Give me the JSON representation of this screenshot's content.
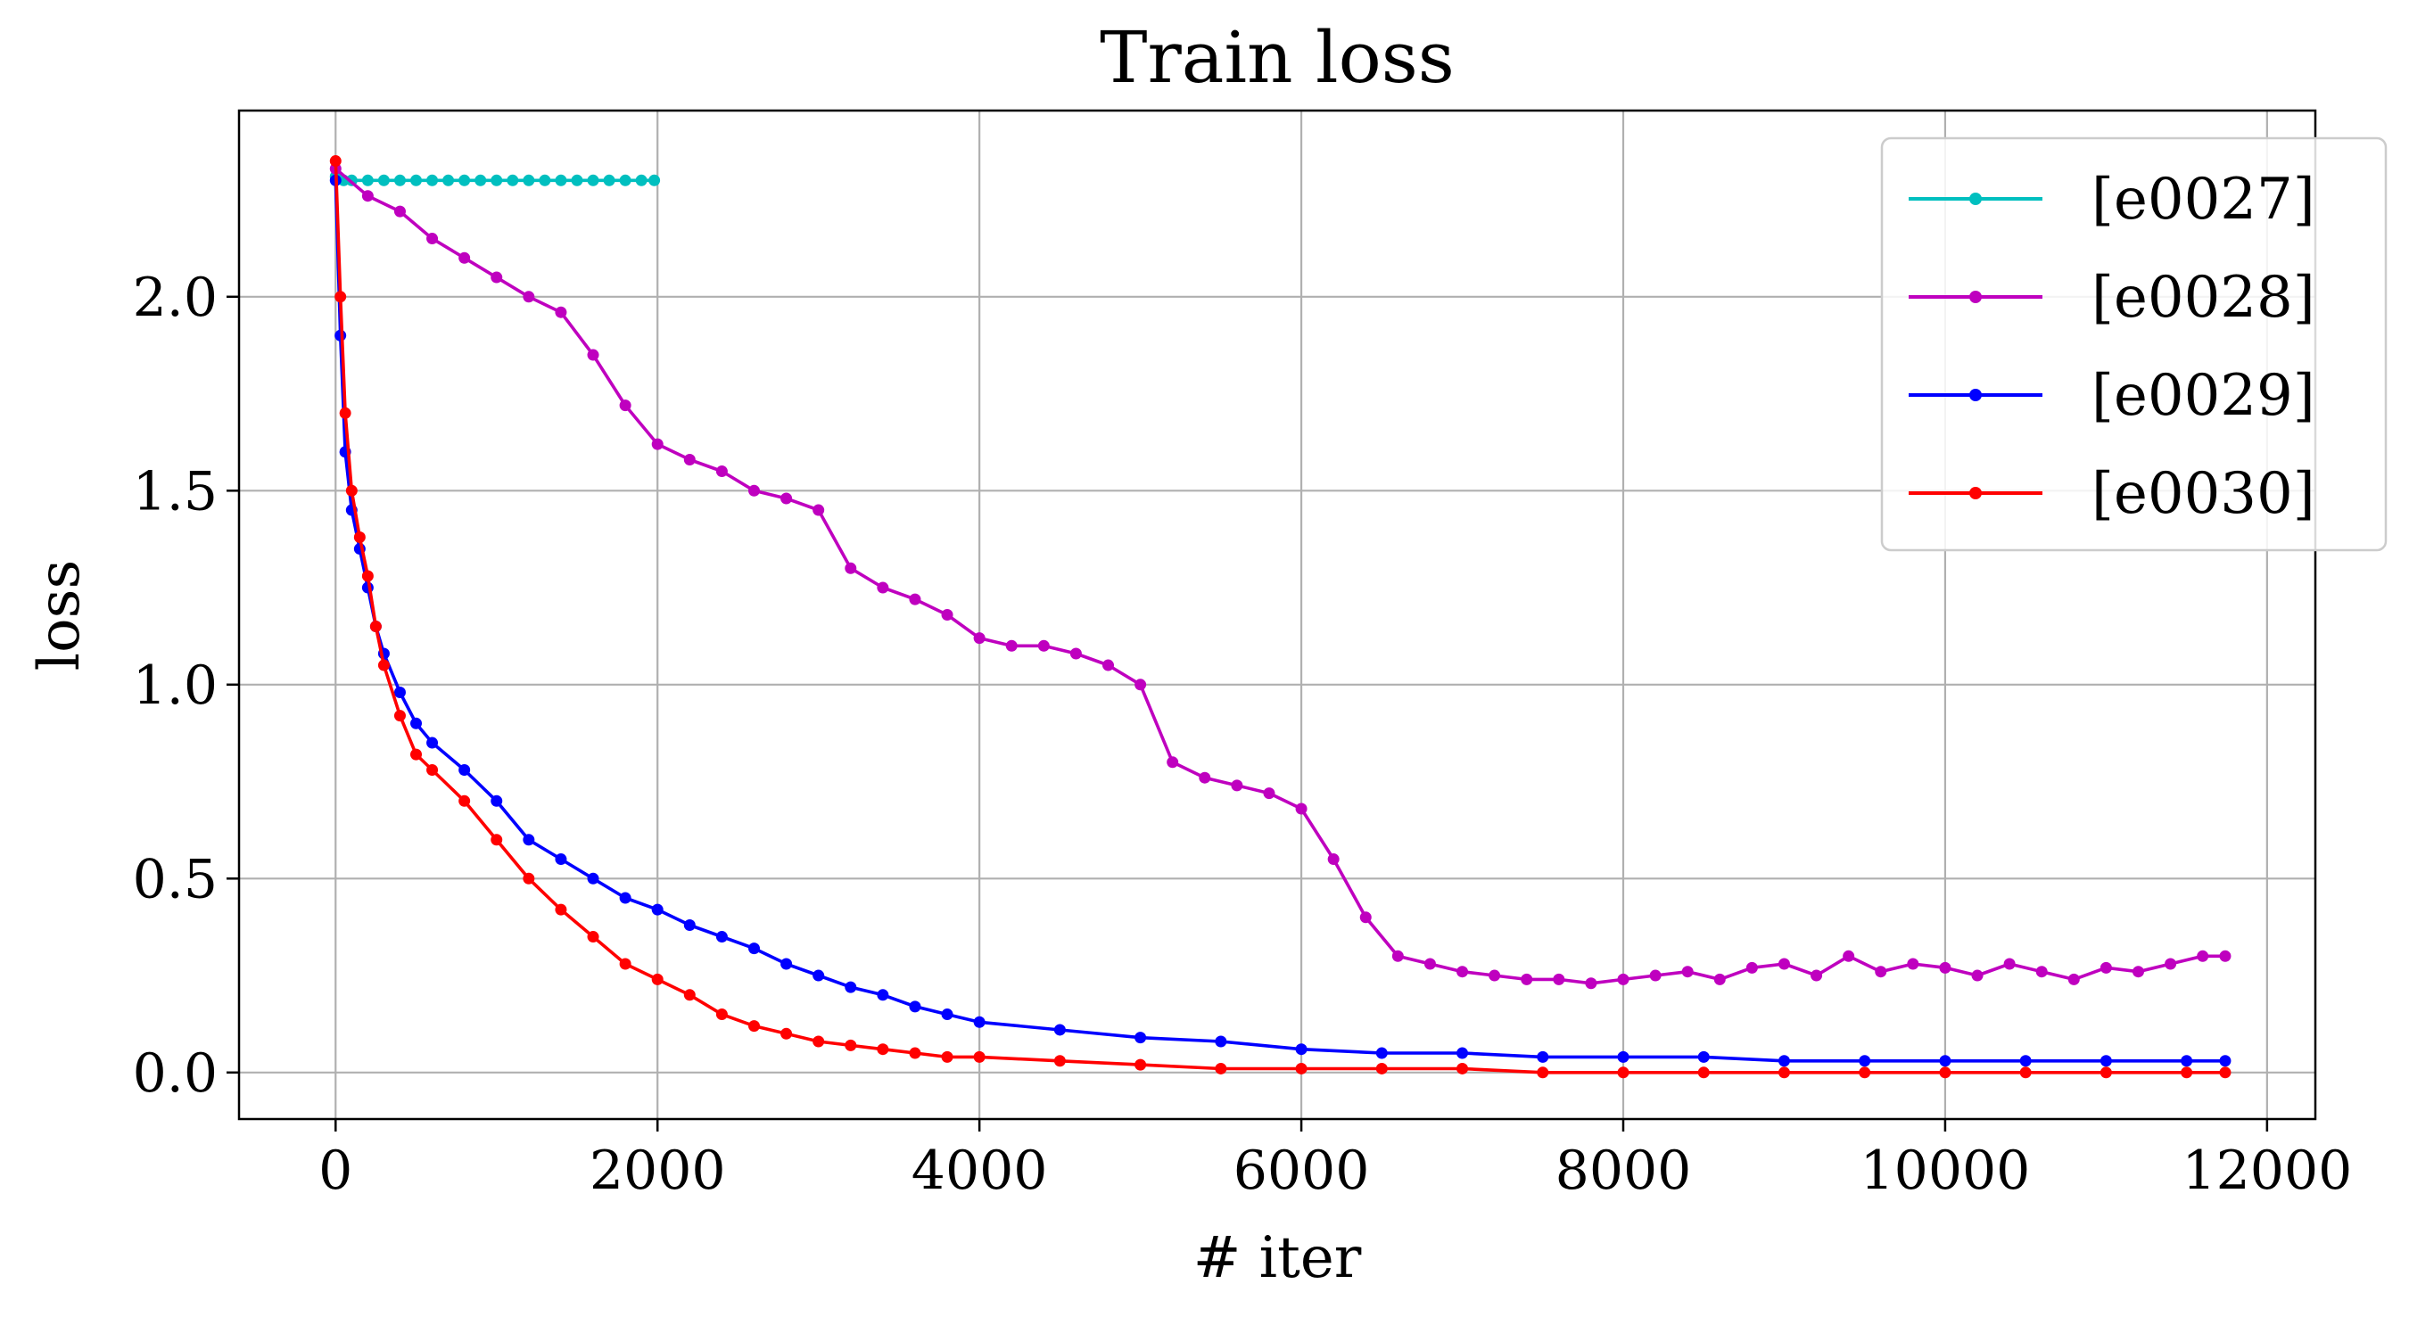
{
  "chart_data": {
    "type": "line",
    "title": "Train loss",
    "xlabel": "# iter",
    "ylabel": "loss",
    "xlim": [
      -600,
      12300
    ],
    "ylim": [
      -0.12,
      2.48
    ],
    "xticks": [
      0,
      2000,
      4000,
      6000,
      8000,
      10000,
      12000
    ],
    "xtick_labels": [
      "0",
      "2000",
      "4000",
      "6000",
      "8000",
      "10000",
      "12000"
    ],
    "yticks": [
      0.0,
      0.5,
      1.0,
      1.5,
      2.0
    ],
    "ytick_labels": [
      "0.0",
      "0.5",
      "1.0",
      "1.5",
      "2.0"
    ],
    "grid": true,
    "legend_position": "top-right",
    "series": [
      {
        "name": "[e0027]",
        "color": "#00bfbf",
        "x": [
          0,
          50,
          100,
          200,
          300,
          400,
          500,
          600,
          700,
          800,
          900,
          1000,
          1100,
          1200,
          1300,
          1400,
          1500,
          1600,
          1700,
          1800,
          1900,
          1980
        ],
        "y": [
          2.31,
          2.3,
          2.3,
          2.3,
          2.3,
          2.3,
          2.3,
          2.3,
          2.3,
          2.3,
          2.3,
          2.3,
          2.3,
          2.3,
          2.3,
          2.3,
          2.3,
          2.3,
          2.3,
          2.3,
          2.3,
          2.3
        ]
      },
      {
        "name": "[e0028]",
        "color": "#bf00bf",
        "x": [
          0,
          200,
          400,
          600,
          800,
          1000,
          1200,
          1400,
          1600,
          1800,
          2000,
          2200,
          2400,
          2600,
          2800,
          3000,
          3200,
          3400,
          3600,
          3800,
          4000,
          4200,
          4400,
          4600,
          4800,
          5000,
          5200,
          5400,
          5600,
          5800,
          6000,
          6200,
          6400,
          6600,
          6800,
          7000,
          7200,
          7400,
          7600,
          7800,
          8000,
          8200,
          8400,
          8600,
          8800,
          9000,
          9200,
          9400,
          9600,
          9800,
          10000,
          10200,
          10400,
          10600,
          10800,
          11000,
          11200,
          11400,
          11600,
          11740
        ],
        "y": [
          2.33,
          2.26,
          2.22,
          2.15,
          2.1,
          2.05,
          2.0,
          1.96,
          1.85,
          1.72,
          1.62,
          1.58,
          1.55,
          1.5,
          1.48,
          1.45,
          1.3,
          1.25,
          1.22,
          1.18,
          1.12,
          1.1,
          1.1,
          1.08,
          1.05,
          1.0,
          0.8,
          0.76,
          0.74,
          0.72,
          0.68,
          0.55,
          0.4,
          0.3,
          0.28,
          0.26,
          0.25,
          0.24,
          0.24,
          0.23,
          0.24,
          0.25,
          0.26,
          0.24,
          0.27,
          0.28,
          0.25,
          0.3,
          0.26,
          0.28,
          0.27,
          0.25,
          0.28,
          0.26,
          0.24,
          0.27,
          0.26,
          0.28,
          0.3,
          0.3
        ]
      },
      {
        "name": "[e0029]",
        "color": "#0000ff",
        "x": [
          0,
          30,
          60,
          100,
          150,
          200,
          250,
          300,
          400,
          500,
          600,
          800,
          1000,
          1200,
          1400,
          1600,
          1800,
          2000,
          2200,
          2400,
          2600,
          2800,
          3000,
          3200,
          3400,
          3600,
          3800,
          4000,
          4500,
          5000,
          5500,
          6000,
          6500,
          7000,
          7500,
          8000,
          8500,
          9000,
          9500,
          10000,
          10500,
          11000,
          11500,
          11740
        ],
        "y": [
          2.3,
          1.9,
          1.6,
          1.45,
          1.35,
          1.25,
          1.15,
          1.08,
          0.98,
          0.9,
          0.85,
          0.78,
          0.7,
          0.6,
          0.55,
          0.5,
          0.45,
          0.42,
          0.38,
          0.35,
          0.32,
          0.28,
          0.25,
          0.22,
          0.2,
          0.17,
          0.15,
          0.13,
          0.11,
          0.09,
          0.08,
          0.06,
          0.05,
          0.05,
          0.04,
          0.04,
          0.04,
          0.03,
          0.03,
          0.03,
          0.03,
          0.03,
          0.03,
          0.03
        ]
      },
      {
        "name": "[e0030]",
        "color": "#ff0000",
        "x": [
          0,
          30,
          60,
          100,
          150,
          200,
          250,
          300,
          400,
          500,
          600,
          800,
          1000,
          1200,
          1400,
          1600,
          1800,
          2000,
          2200,
          2400,
          2600,
          2800,
          3000,
          3200,
          3400,
          3600,
          3800,
          4000,
          4500,
          5000,
          5500,
          6000,
          6500,
          7000,
          7500,
          8000,
          8500,
          9000,
          9500,
          10000,
          10500,
          11000,
          11500,
          11740
        ],
        "y": [
          2.35,
          2.0,
          1.7,
          1.5,
          1.38,
          1.28,
          1.15,
          1.05,
          0.92,
          0.82,
          0.78,
          0.7,
          0.6,
          0.5,
          0.42,
          0.35,
          0.28,
          0.24,
          0.2,
          0.15,
          0.12,
          0.1,
          0.08,
          0.07,
          0.06,
          0.05,
          0.04,
          0.04,
          0.03,
          0.02,
          0.01,
          0.01,
          0.01,
          0.01,
          0.0,
          0.0,
          0.0,
          0.0,
          0.0,
          0.0,
          0.0,
          0.0,
          0.0,
          0.0
        ]
      }
    ]
  }
}
